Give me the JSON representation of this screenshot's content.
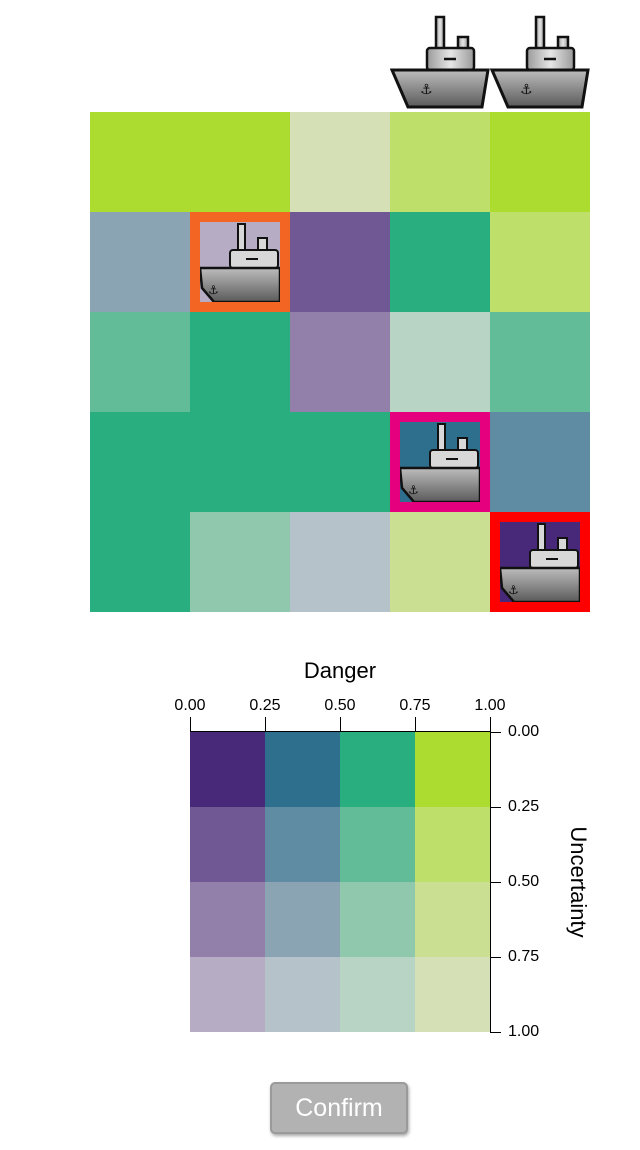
{
  "palette": [
    [
      "#482878",
      "#2e6f8e",
      "#29af7f",
      "#addc30"
    ],
    [
      "#6f5893",
      "#5f8ca2",
      "#63bc98",
      "#bfdf6b"
    ],
    [
      "#9380aa",
      "#8aa4b3",
      "#8fc8ac",
      "#cbdf92"
    ],
    [
      "#b6acc4",
      "#b5c2c9",
      "#b7d4c5",
      "#d6e0b6"
    ]
  ],
  "top_ships": {
    "count": 2,
    "icon": "ship-icon",
    "columns": [
      3,
      4
    ]
  },
  "grid": {
    "rows": 5,
    "cols": 5,
    "cells": [
      [
        {
          "danger": 3,
          "uncertainty": 0
        },
        {
          "danger": 3,
          "uncertainty": 0
        },
        {
          "danger": 3,
          "uncertainty": 3
        },
        {
          "danger": 3,
          "uncertainty": 1
        },
        {
          "danger": 3,
          "uncertainty": 0
        }
      ],
      [
        {
          "danger": 1,
          "uncertainty": 2
        },
        {
          "danger": 0,
          "uncertainty": 3,
          "ship": true,
          "border_color": "#f26522"
        },
        {
          "danger": 0,
          "uncertainty": 1
        },
        {
          "danger": 2,
          "uncertainty": 0
        },
        {
          "danger": 3,
          "uncertainty": 1
        }
      ],
      [
        {
          "danger": 2,
          "uncertainty": 1
        },
        {
          "danger": 2,
          "uncertainty": 0
        },
        {
          "danger": 0,
          "uncertainty": 2
        },
        {
          "danger": 2,
          "uncertainty": 3
        },
        {
          "danger": 2,
          "uncertainty": 1
        }
      ],
      [
        {
          "danger": 2,
          "uncertainty": 0
        },
        {
          "danger": 2,
          "uncertainty": 0
        },
        {
          "danger": 2,
          "uncertainty": 0
        },
        {
          "danger": 1,
          "uncertainty": 0,
          "ship": true,
          "border_color": "#e5007e"
        },
        {
          "danger": 1,
          "uncertainty": 1
        }
      ],
      [
        {
          "danger": 2,
          "uncertainty": 0
        },
        {
          "danger": 2,
          "uncertainty": 2
        },
        {
          "danger": 1,
          "uncertainty": 3
        },
        {
          "danger": 3,
          "uncertainty": 2
        },
        {
          "danger": 0,
          "uncertainty": 0,
          "ship": true,
          "border_color": "#ff0000"
        }
      ]
    ]
  },
  "legend": {
    "title": "Danger",
    "y_label": "Uncertainty",
    "x_ticks": [
      "0.00",
      "0.25",
      "0.50",
      "0.75",
      "1.00"
    ],
    "y_ticks": [
      "0.00",
      "0.25",
      "0.50",
      "0.75",
      "1.00"
    ]
  },
  "confirm_button": {
    "label": "Confirm"
  }
}
